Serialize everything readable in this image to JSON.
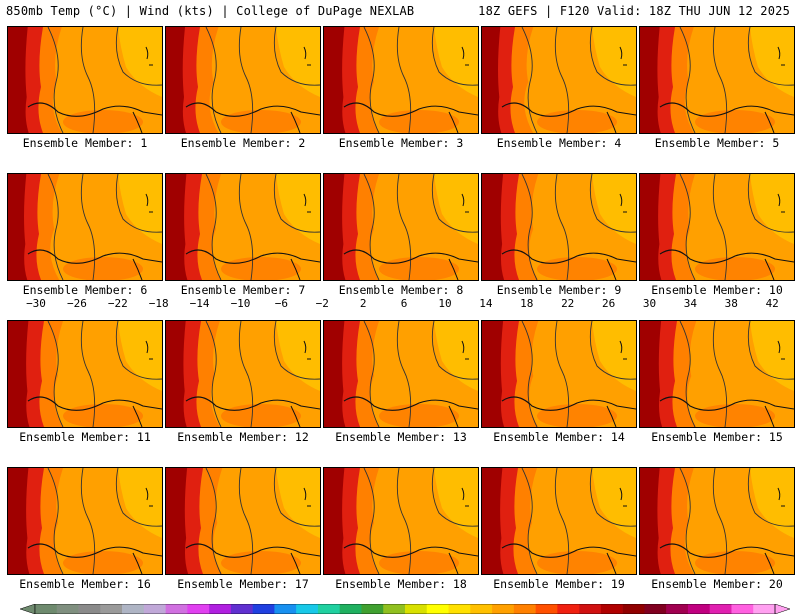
{
  "header": {
    "left_title": "850mb Temp (°C) | Wind (kts) | College of DuPage NEXLAB",
    "right_title": "18Z GEFS | F120 Valid: 18Z THU JUN 12 2025"
  },
  "members": [
    {
      "label": "Ensemble Member: 1",
      "heat": 0.55
    },
    {
      "label": "Ensemble Member: 2",
      "heat": 0.5
    },
    {
      "label": "Ensemble Member: 3",
      "heat": 0.6
    },
    {
      "label": "Ensemble Member: 4",
      "heat": 0.45
    },
    {
      "label": "Ensemble Member: 5",
      "heat": 0.55
    },
    {
      "label": "Ensemble Member: 6",
      "heat": 0.45
    },
    {
      "label": "Ensemble Member: 7",
      "heat": 0.6
    },
    {
      "label": "Ensemble Member: 8",
      "heat": 0.6
    },
    {
      "label": "Ensemble Member: 9",
      "heat": 0.65
    },
    {
      "label": "Ensemble Member: 10",
      "heat": 0.6
    },
    {
      "label": "Ensemble Member: 11",
      "heat": 0.6
    },
    {
      "label": "Ensemble Member: 12",
      "heat": 0.55
    },
    {
      "label": "Ensemble Member: 13",
      "heat": 0.6
    },
    {
      "label": "Ensemble Member: 14",
      "heat": 0.65
    },
    {
      "label": "Ensemble Member: 15",
      "heat": 0.65
    },
    {
      "label": "Ensemble Member: 16",
      "heat": 0.6
    },
    {
      "label": "Ensemble Member: 17",
      "heat": 0.65
    },
    {
      "label": "Ensemble Member: 18",
      "heat": 0.6
    },
    {
      "label": "Ensemble Member: 19",
      "heat": 0.6
    },
    {
      "label": "Ensemble Member: 20",
      "heat": 0.55
    }
  ],
  "colorbar": {
    "ticks": [
      "−30",
      "−26",
      "−22",
      "−18",
      "−14",
      "−10",
      "−6",
      "−2",
      "2",
      "6",
      "10",
      "14",
      "18",
      "22",
      "26",
      "30",
      "34",
      "38",
      "42"
    ],
    "colors": [
      "#6e8a6e",
      "#7f8f7f",
      "#8a8a8a",
      "#9a9a9a",
      "#aeb4c4",
      "#c0a8d8",
      "#d070e0",
      "#e040f0",
      "#b020e0",
      "#6030d0",
      "#2040e0",
      "#1890f0",
      "#18c8e8",
      "#20d0a0",
      "#20b060",
      "#40a030",
      "#90c020",
      "#d8e000",
      "#ffff00",
      "#ffe000",
      "#ffc000",
      "#ffa000",
      "#ff8000",
      "#ff5000",
      "#f02010",
      "#d01010",
      "#b00000",
      "#900000",
      "#800020",
      "#a00050",
      "#c00080",
      "#e020b0",
      "#ff60e0",
      "#ffa0f0"
    ]
  }
}
